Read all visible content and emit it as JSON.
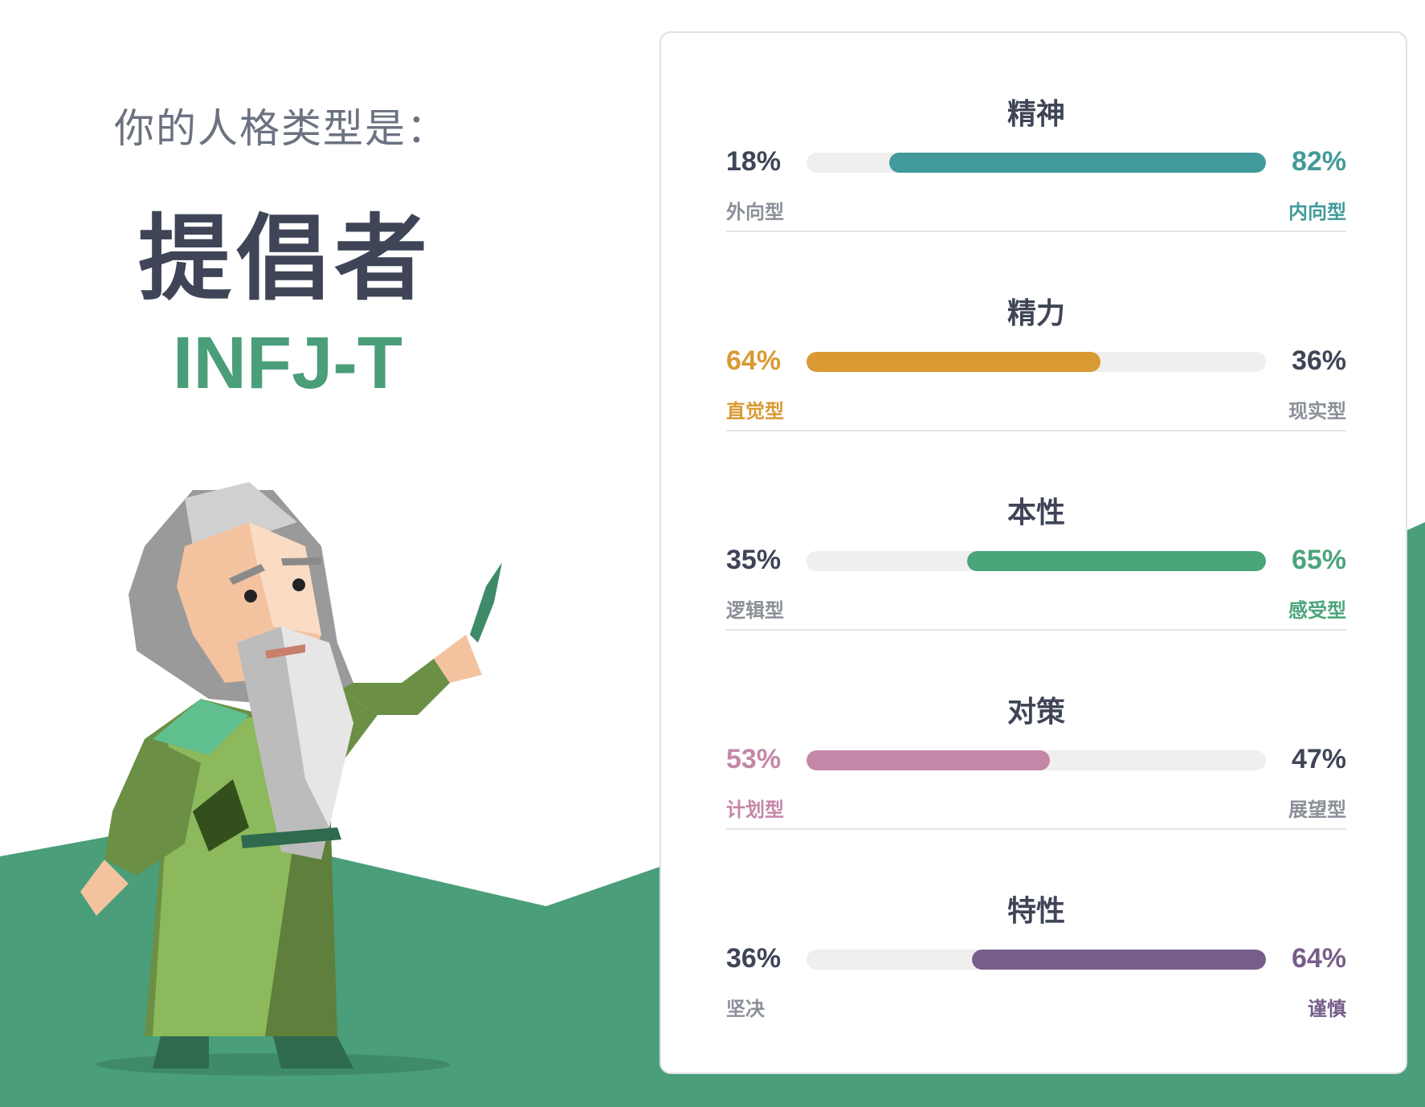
{
  "result": {
    "prompt": "你的人格类型是：",
    "type_name": "提倡者",
    "type_code": "INFJ-T"
  },
  "colors": {
    "mind": "#439a9a",
    "energy": "#d99a33",
    "nature": "#4aa57a",
    "tactics": "#c487a8",
    "identity": "#765e8a",
    "neutral_text": "#3f4557",
    "muted_text": "#8b8f98",
    "track": "#efefef",
    "hill": "#4a9e7a"
  },
  "traits": [
    {
      "title": "精神",
      "left_pct": "18%",
      "right_pct": "82%",
      "left_label": "外向型",
      "right_label": "内向型",
      "dominant": "right",
      "value": 0.82,
      "color": "#439a9a"
    },
    {
      "title": "精力",
      "left_pct": "64%",
      "right_pct": "36%",
      "left_label": "直觉型",
      "right_label": "现实型",
      "dominant": "left",
      "value": 0.64,
      "color": "#d99a33"
    },
    {
      "title": "本性",
      "left_pct": "35%",
      "right_pct": "65%",
      "left_label": "逻辑型",
      "right_label": "感受型",
      "dominant": "right",
      "value": 0.65,
      "color": "#4aa57a"
    },
    {
      "title": "对策",
      "left_pct": "53%",
      "right_pct": "47%",
      "left_label": "计划型",
      "right_label": "展望型",
      "dominant": "left",
      "value": 0.53,
      "color": "#c487a8"
    },
    {
      "title": "特性",
      "left_pct": "36%",
      "right_pct": "64%",
      "left_label": "坚决",
      "right_label": "谨慎",
      "dominant": "right",
      "value": 0.64,
      "color": "#765e8a"
    }
  ]
}
